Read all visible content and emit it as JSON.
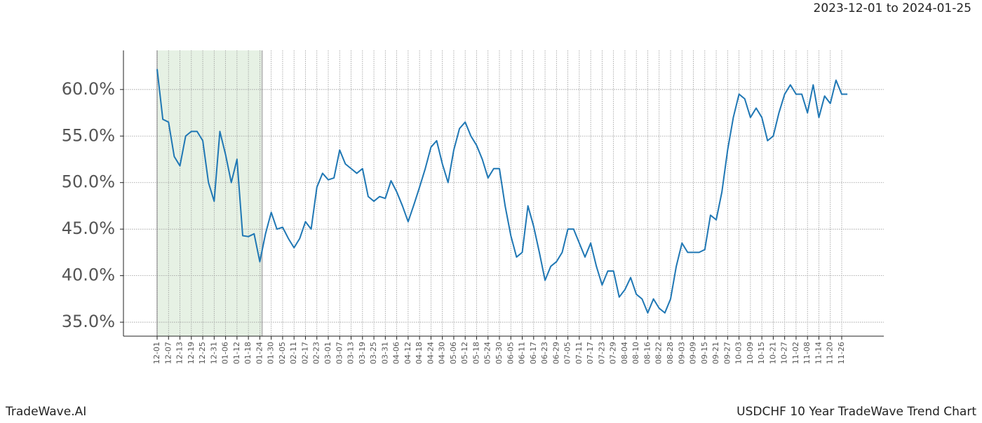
{
  "chart_data": {
    "type": "line",
    "title": "2023-12-01 to 2024-01-25",
    "categories": [
      "12-01",
      null,
      "12-07",
      null,
      "12-13",
      null,
      "12-19",
      null,
      "12-25",
      null,
      "12-31",
      null,
      "01-06",
      null,
      "01-12",
      null,
      "01-18",
      null,
      "01-24",
      null,
      "01-30",
      null,
      "02-05",
      null,
      "02-11",
      null,
      "02-17",
      null,
      "02-23",
      null,
      "03-01",
      null,
      "03-07",
      null,
      "03-13",
      null,
      "03-19",
      null,
      "03-25",
      null,
      "03-31",
      null,
      "04-06",
      null,
      "04-12",
      null,
      "04-18",
      null,
      "04-24",
      null,
      "04-30",
      null,
      "05-06",
      null,
      "05-12",
      null,
      "05-18",
      null,
      "05-24",
      null,
      "05-30",
      null,
      "06-05",
      null,
      "06-11",
      null,
      "06-17",
      null,
      "06-23",
      null,
      "06-29",
      null,
      "07-05",
      null,
      "07-11",
      null,
      "07-17",
      null,
      "07-23",
      null,
      "07-29",
      null,
      "08-04",
      null,
      "08-10",
      null,
      "08-16",
      null,
      "08-22",
      null,
      "08-28",
      null,
      "09-03",
      null,
      "09-09",
      null,
      "09-15",
      null,
      "09-21",
      null,
      "09-27",
      null,
      "10-03",
      null,
      "10-09",
      null,
      "10-15",
      null,
      "10-21",
      null,
      "10-27",
      null,
      "11-02",
      null,
      "11-08",
      null,
      "11-14",
      null,
      "11-20",
      null,
      "11-26",
      null
    ],
    "values": [
      62.2,
      56.8,
      56.5,
      52.8,
      51.8,
      55,
      55.5,
      55.5,
      54.5,
      50,
      48,
      55.5,
      53,
      50,
      52.5,
      44.3,
      44.2,
      44.5,
      41.5,
      44.5,
      46.8,
      45,
      45.2,
      44,
      43,
      44,
      45.8,
      45,
      49.5,
      51,
      50.3,
      50.5,
      53.5,
      52,
      51.5,
      51,
      51.5,
      48.5,
      48,
      48.5,
      48.3,
      50.2,
      49,
      47.5,
      45.8,
      47.6,
      49.5,
      51.5,
      53.8,
      54.5,
      52,
      50,
      53.5,
      55.8,
      56.5,
      55,
      54,
      52.5,
      50.5,
      51.5,
      51.5,
      47.5,
      44.3,
      42,
      42.5,
      47.5,
      45.3,
      42.5,
      39.5,
      41,
      41.5,
      42.5,
      45,
      45,
      43.5,
      42,
      43.5,
      41,
      39,
      40.5,
      40.5,
      37.7,
      38.5,
      39.8,
      38,
      37.5,
      36,
      37.5,
      36.5,
      36,
      37.5,
      41,
      43.5,
      42.5,
      42.5,
      42.5,
      42.8,
      46.5,
      46,
      49,
      53.5,
      57,
      59.5,
      59,
      57,
      58,
      57,
      54.5,
      55,
      57.5,
      59.5,
      60.5,
      59.5,
      59.5,
      57.5,
      60.5,
      57,
      59.3,
      58.5,
      61,
      59.5,
      59.5
    ],
    "color": "#1f77b4",
    "ylim": [
      33.5,
      64.2
    ],
    "yticks": [
      {
        "value": 35,
        "label": "35.0%"
      },
      {
        "value": 40,
        "label": "40.0%"
      },
      {
        "value": 45,
        "label": "45.0%"
      },
      {
        "value": 50,
        "label": "50.0%"
      },
      {
        "value": 55,
        "label": "55.0%"
      },
      {
        "value": 60,
        "label": "60.0%"
      }
    ],
    "grid": true,
    "highlight": {
      "from": "12-01",
      "to": "01-24",
      "color": "#e6f1e4"
    }
  },
  "footer": {
    "brand": "TradeWave.AI",
    "caption": "USDCHF 10 Year TradeWave Trend Chart"
  }
}
